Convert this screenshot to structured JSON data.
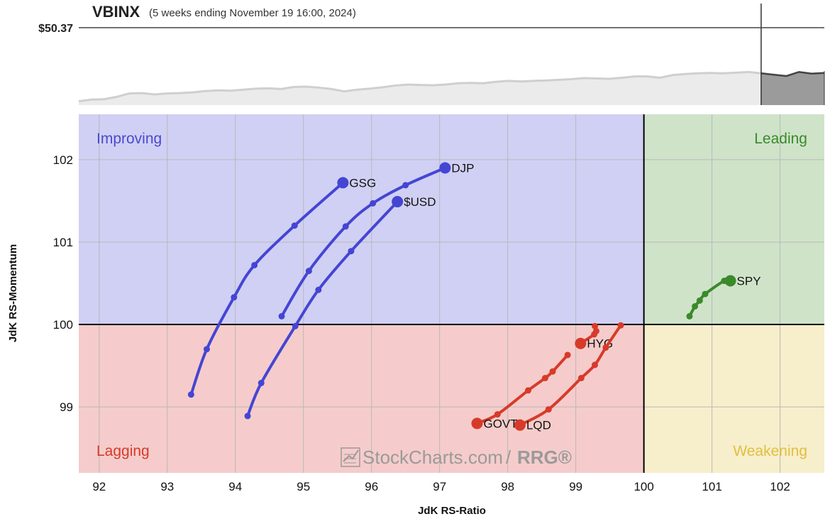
{
  "header": {
    "symbol": "VBINX",
    "subtitle": "(5 weeks ending November 19 16:00, 2024)",
    "price_label": "$50.37"
  },
  "quadrants": {
    "improving": {
      "label": "Improving",
      "fill": "#d0d0f4",
      "text_color": "#4a4ad0"
    },
    "leading": {
      "label": "Leading",
      "fill": "#cfe3c9",
      "text_color": "#3a8a2a"
    },
    "lagging": {
      "label": "Lagging",
      "fill": "#f5cccb",
      "text_color": "#d83a2a"
    },
    "weakening": {
      "label": "Weakening",
      "fill": "#f7eecb",
      "text_color": "#e0c040"
    }
  },
  "watermark": {
    "brand": "StockCharts.com",
    "sep": "/",
    "product": "RRG®"
  },
  "chart_data": {
    "type": "scatter",
    "xlabel": "JdK RS-Ratio",
    "ylabel": "JdK RS-Momentum",
    "xlim": [
      91.7,
      102.65
    ],
    "ylim": [
      98.2,
      102.55
    ],
    "x_ticks": [
      92,
      93,
      94,
      95,
      96,
      97,
      98,
      99,
      100,
      101,
      102
    ],
    "y_ticks": [
      99,
      100,
      101,
      102
    ],
    "center": [
      100,
      100
    ],
    "grid": true,
    "series": [
      {
        "name": "GSG",
        "color": "#4545d4",
        "label_side": "right",
        "points": [
          [
            93.35,
            99.15
          ],
          [
            93.58,
            99.7
          ],
          [
            93.98,
            100.33
          ],
          [
            94.28,
            100.72
          ],
          [
            94.87,
            101.2
          ],
          [
            95.58,
            101.72
          ]
        ]
      },
      {
        "name": "DJP",
        "color": "#4545d4",
        "label_side": "right",
        "points": [
          [
            94.68,
            100.1
          ],
          [
            95.08,
            100.65
          ],
          [
            95.62,
            101.19
          ],
          [
            96.02,
            101.47
          ],
          [
            96.5,
            101.69
          ],
          [
            97.08,
            101.9
          ]
        ]
      },
      {
        "name": "$USD",
        "color": "#4545d4",
        "label_side": "right",
        "points": [
          [
            94.18,
            98.89
          ],
          [
            94.38,
            99.29
          ],
          [
            94.88,
            99.98
          ],
          [
            95.22,
            100.42
          ],
          [
            95.7,
            100.89
          ],
          [
            96.38,
            101.49
          ]
        ]
      },
      {
        "name": "SPY",
        "color": "#3a8a2a",
        "label_side": "right",
        "points": [
          [
            100.67,
            100.1
          ],
          [
            100.75,
            100.22
          ],
          [
            100.82,
            100.29
          ],
          [
            100.9,
            100.37
          ],
          [
            101.18,
            100.53
          ],
          [
            101.27,
            100.53
          ]
        ]
      },
      {
        "name": "HYG",
        "color": "#d83a2a",
        "label_side": "right",
        "points": [
          [
            99.28,
            99.98
          ],
          [
            99.3,
            99.92
          ],
          [
            99.27,
            99.88
          ],
          [
            99.07,
            99.77
          ]
        ]
      },
      {
        "name": "GOVT",
        "color": "#d83a2a",
        "label_side": "right",
        "points": [
          [
            98.88,
            99.63
          ],
          [
            98.66,
            99.43
          ],
          [
            98.55,
            99.35
          ],
          [
            98.3,
            99.2
          ],
          [
            97.85,
            98.91
          ],
          [
            97.55,
            98.8
          ]
        ]
      },
      {
        "name": "LQD",
        "color": "#d83a2a",
        "label_side": "right",
        "points": [
          [
            99.66,
            99.99
          ],
          [
            99.44,
            99.72
          ],
          [
            99.28,
            99.51
          ],
          [
            99.08,
            99.35
          ],
          [
            98.6,
            98.97
          ],
          [
            98.18,
            98.78
          ]
        ]
      }
    ],
    "price_series": [
      0.07,
      0.12,
      0.13,
      0.2,
      0.3,
      0.31,
      0.27,
      0.3,
      0.31,
      0.33,
      0.37,
      0.39,
      0.38,
      0.41,
      0.44,
      0.45,
      0.43,
      0.49,
      0.5,
      0.47,
      0.43,
      0.36,
      0.41,
      0.44,
      0.48,
      0.53,
      0.56,
      0.55,
      0.54,
      0.56,
      0.6,
      0.61,
      0.6,
      0.64,
      0.67,
      0.65,
      0.67,
      0.68,
      0.7,
      0.72,
      0.75,
      0.74,
      0.73,
      0.76,
      0.8,
      0.8,
      0.76,
      0.84,
      0.87,
      0.89,
      0.9,
      0.89,
      0.91,
      0.93,
      0.89,
      0.85,
      0.81,
      0.93,
      0.88,
      0.9
    ],
    "price_window_start_index": 54
  }
}
